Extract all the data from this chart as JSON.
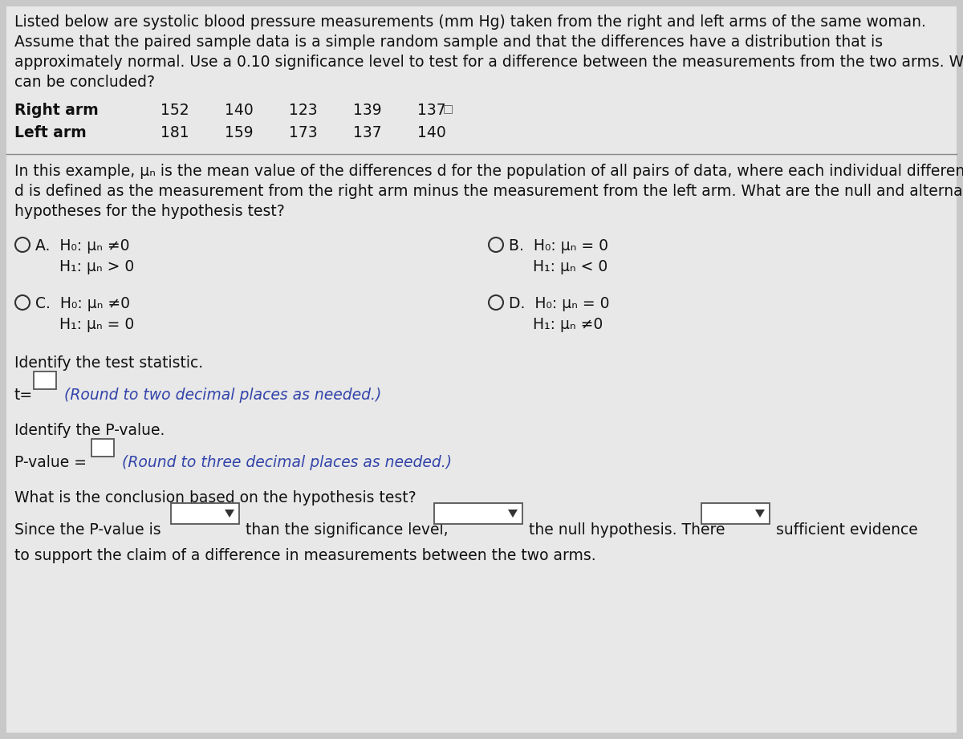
{
  "bg_color": "#c8c8c8",
  "content_bg": "#e8e8e8",
  "text_color": "#111111",
  "blue_italic_color": "#3344aa",
  "intro_lines": [
    "Listed below are systolic blood pressure measurements (mm Hg) taken from the right and left arms of the same woman.",
    "Assume that the paired sample data is a simple random sample and that the differences have a distribution that is",
    "approximately normal. Use a 0.10 significance level to test for a difference between the measurements from the two arms. What",
    "can be concluded?"
  ],
  "right_arm_label": "Right arm",
  "left_arm_label": "Left arm",
  "right_arm_values": [
    "152",
    "140",
    "123",
    "139",
    "137"
  ],
  "left_arm_values": [
    "181",
    "159",
    "173",
    "137",
    "140"
  ],
  "example_lines": [
    "In this example, μₙ is the mean value of the differences d for the population of all pairs of data, where each individual difference",
    "d is defined as the measurement from the right arm minus the measurement from the left arm. What are the null and alternative",
    "hypotheses for the hypothesis test?"
  ],
  "optA_1": "A.  H₀: μₙ ≠0",
  "optA_2": "     H₁: μₙ > 0",
  "optB_1": "B.  H₀: μₙ = 0",
  "optB_2": "     H₁: μₙ < 0",
  "optC_1": "C.  H₀: μₙ ≠0",
  "optC_2": "     H₁: μₙ = 0",
  "optD_1": "D.  H₀: μₙ = 0",
  "optD_2": "     H₁: μₙ ≠0",
  "identify_stat": "Identify the test statistic.",
  "t_prefix": "t=",
  "t_round": "(Round to two decimal places as needed.)",
  "identify_p": "Identify the P-value.",
  "p_prefix": "P-value =",
  "p_round": "(Round to three decimal places as needed.)",
  "conclusion": "What is the conclusion based on the hypothesis test?",
  "since_prefix": "Since the P-value is",
  "since_mid1": "than the significance level,",
  "since_mid2": "the null hypothesis. There",
  "since_end": "sufficient evidence",
  "to_support": "to support the claim of a difference in measurements between the two arms."
}
